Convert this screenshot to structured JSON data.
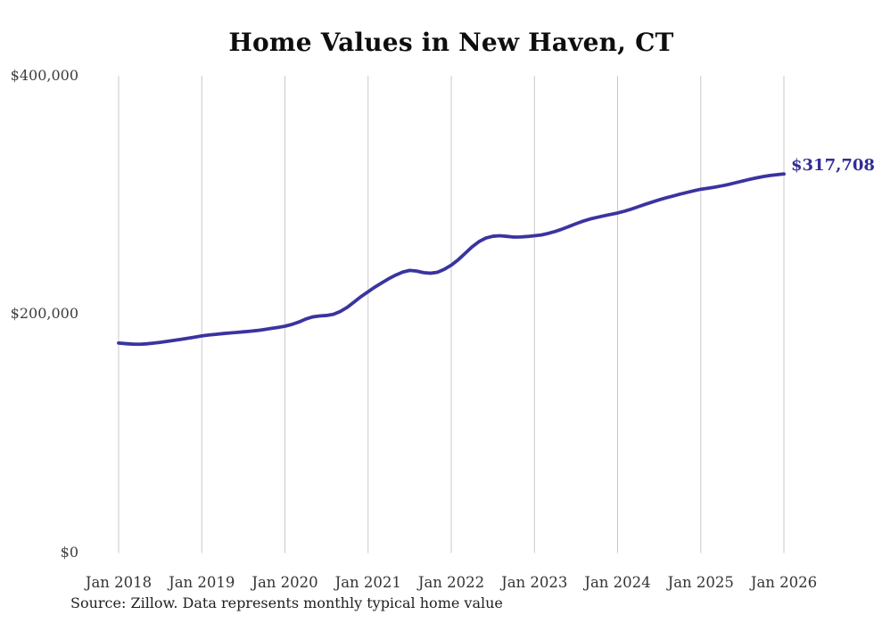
{
  "title": "Home Values in New Haven, CT",
  "end_label": "$317,708",
  "source_note": "Source: Zillow. Data represents monthly typical home value",
  "colors": {
    "line": "#3a34a0",
    "grid": "#c9c9c9",
    "background": "#ffffff",
    "end_label_text": "#312d95",
    "title_text": "#0e0e0e",
    "axis_text": "#3d3d3d"
  },
  "chart_data": {
    "type": "line",
    "title": "Home Values in New Haven, CT",
    "xlabel": "",
    "ylabel": "",
    "ylim": [
      0,
      400000
    ],
    "grid": "vertical-only",
    "legend": "none",
    "y_tick_labels": [
      "$0",
      "$200,000",
      "$400,000"
    ],
    "y_tick_values": [
      0,
      200000,
      400000
    ],
    "x_tick_labels": [
      "Jan 2018",
      "Jan 2019",
      "Jan 2020",
      "Jan 2021",
      "Jan 2022",
      "Jan 2023",
      "Jan 2024",
      "Jan 2025",
      "Jan 2026"
    ],
    "end_annotation": "$317,708",
    "series": [
      {
        "name": "Typical home value",
        "interval": "monthly",
        "x_start": "2018-01",
        "x_end": "2026-01",
        "values": [
          176000,
          175500,
          175100,
          175000,
          175300,
          175900,
          176600,
          177400,
          178200,
          179100,
          180000,
          181000,
          182000,
          182700,
          183300,
          183900,
          184400,
          184900,
          185400,
          185900,
          186500,
          187300,
          188200,
          189100,
          190100,
          191600,
          193600,
          196100,
          197900,
          198700,
          199100,
          200100,
          202500,
          206000,
          210500,
          215000,
          219000,
          223000,
          226500,
          230000,
          233000,
          235500,
          236900,
          236300,
          235000,
          234500,
          235300,
          237800,
          241300,
          245800,
          251200,
          256600,
          261000,
          264000,
          265500,
          265900,
          265400,
          264800,
          264900,
          265300,
          265900,
          266600,
          267900,
          269500,
          271500,
          273700,
          276000,
          278100,
          279900,
          281300,
          282600,
          283800,
          285000,
          286500,
          288300,
          290300,
          292300,
          294200,
          296000,
          297700,
          299200,
          300800,
          302200,
          303600,
          304900,
          305700,
          306600,
          307700,
          308900,
          310300,
          311700,
          313100,
          314400,
          315500,
          316400,
          317100,
          317708
        ]
      }
    ]
  }
}
